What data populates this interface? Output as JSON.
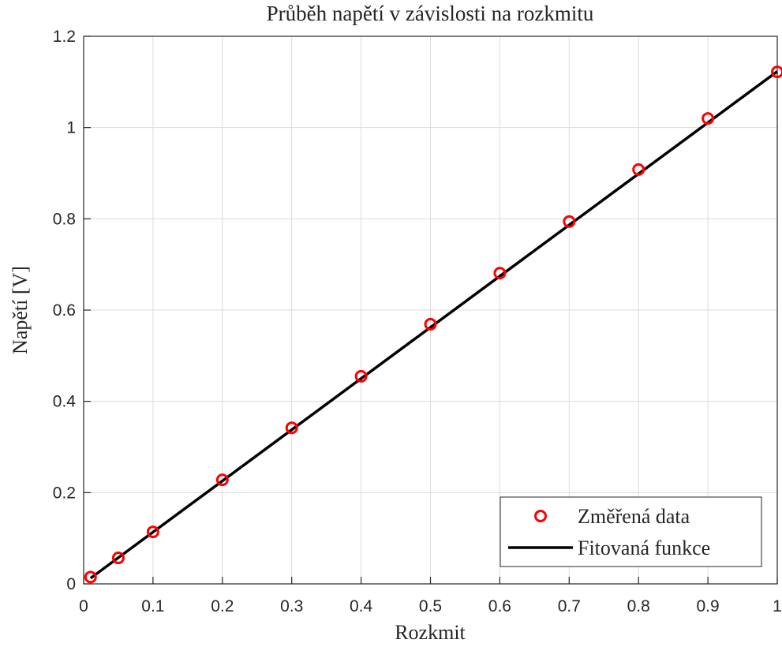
{
  "chart_data": {
    "type": "scatter",
    "title": "Průběh napětí v závislosti na rozkmitu",
    "x_label": "Rozkmit",
    "y_label": "Napětí [V]",
    "xlim": [
      0,
      1
    ],
    "ylim": [
      0,
      1.2
    ],
    "xticks": [
      0,
      0.1,
      0.2,
      0.3,
      0.4,
      0.5,
      0.6,
      0.7,
      0.8,
      0.9,
      1
    ],
    "yticks": [
      0,
      0.2,
      0.4,
      0.6,
      0.8,
      1,
      1.2
    ],
    "grid": true,
    "legend_position": "lower right",
    "series": [
      {
        "name": "Změřená data",
        "type": "scatter",
        "color": "#ff0000",
        "x": [
          0.01,
          0.05,
          0.1,
          0.2,
          0.3,
          0.4,
          0.5,
          0.6,
          0.7,
          0.8,
          0.9,
          1
        ],
        "values": [
          0.015,
          0.057,
          0.114,
          0.228,
          0.342,
          0.455,
          0.569,
          0.681,
          0.794,
          0.908,
          1.02,
          1.122
        ]
      },
      {
        "name": "Fitovaná funkce",
        "type": "line",
        "color": "#000000",
        "x": [
          0.01,
          1
        ],
        "values": [
          0.0125,
          1.123
        ]
      }
    ]
  }
}
